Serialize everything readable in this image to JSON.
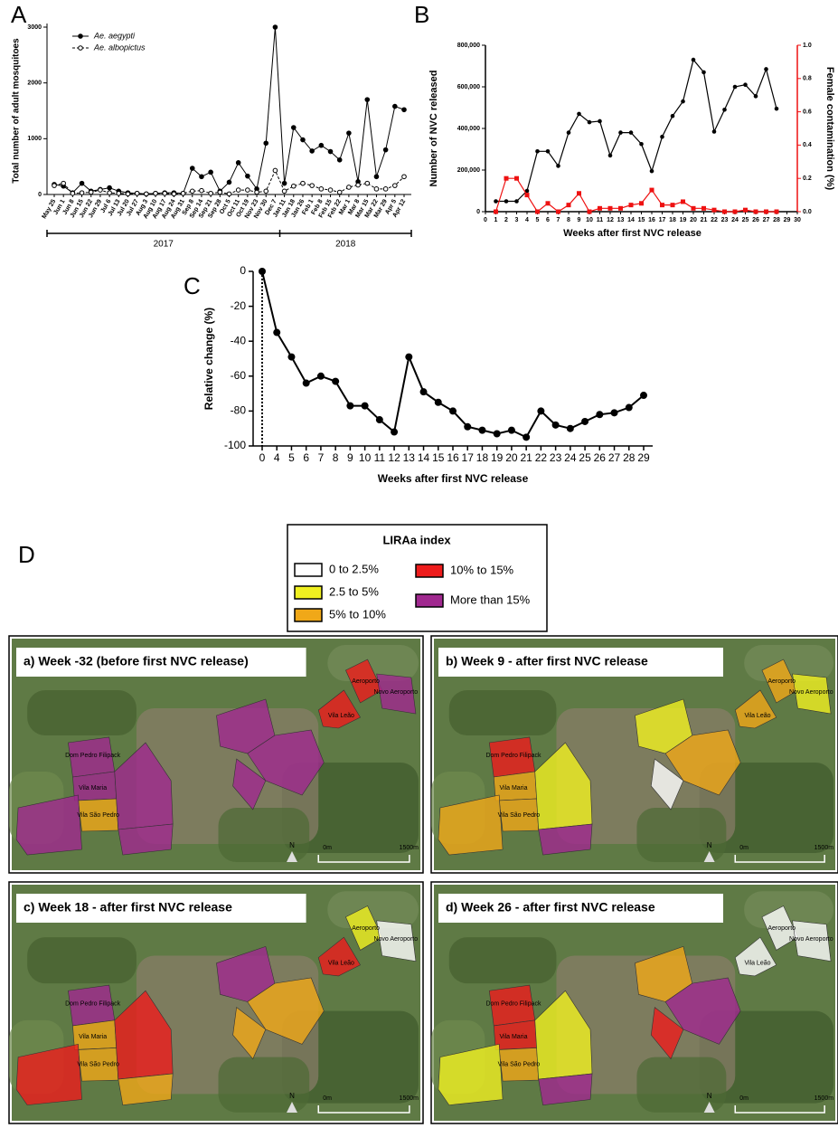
{
  "chart_data": [
    {
      "type": "line",
      "panel": "A",
      "ylabel": "Total number of adult mosquitoes",
      "categories": [
        "May 25",
        "Jun 1",
        "Jun 8",
        "Jun 15",
        "Jun 22",
        "Jun 29",
        "Jul 6",
        "Jul 13",
        "Jul 20",
        "Jul 27",
        "Aug 3",
        "Aug 10",
        "Aug 17",
        "Aug 24",
        "Aug 31",
        "Sep 8",
        "Sep 14",
        "Sep 21",
        "Sep 28",
        "Oct 5",
        "Oct 11",
        "Oct 19",
        "Nov 23",
        "Nov 30",
        "Dec 7",
        "Jan 11",
        "Jan 18",
        "Jan 26",
        "Feb 1",
        "Feb 8",
        "Feb 15",
        "Feb 22",
        "Mar 1",
        "Mar 8",
        "Mar 15",
        "Mar 22",
        "Mar 29",
        "Apr 5",
        "Apr 12"
      ],
      "series": [
        {
          "name": "Ae. aegypti",
          "color": "#000000",
          "marker": "filled",
          "linestyle": "solid",
          "values": [
            180,
            150,
            30,
            200,
            60,
            90,
            120,
            60,
            30,
            20,
            10,
            20,
            30,
            30,
            20,
            470,
            320,
            400,
            60,
            220,
            570,
            330,
            100,
            920,
            3000,
            200,
            1200,
            980,
            780,
            880,
            770,
            620,
            1100,
            230,
            1700,
            320,
            800,
            1580,
            1520
          ]
        },
        {
          "name": "Ae. albopictus",
          "color": "#000000",
          "marker": "open",
          "linestyle": "dashed",
          "values": [
            160,
            200,
            20,
            30,
            40,
            80,
            30,
            20,
            10,
            20,
            10,
            20,
            20,
            10,
            20,
            60,
            70,
            20,
            40,
            10,
            80,
            80,
            40,
            60,
            430,
            60,
            150,
            200,
            160,
            100,
            80,
            40,
            130,
            170,
            200,
            100,
            100,
            160,
            320
          ]
        }
      ],
      "ylim": [
        0,
        3000
      ],
      "yticks": [
        0,
        1000,
        2000,
        3000
      ],
      "groups": [
        "2017",
        "2018"
      ]
    },
    {
      "type": "dual-line",
      "panel": "B",
      "xlabel": "Weeks after first NVC release",
      "ylabel": "Number of NVC released",
      "y2label": "Female contamination (%)",
      "x": [
        1,
        2,
        3,
        4,
        5,
        6,
        7,
        8,
        9,
        10,
        11,
        12,
        13,
        14,
        15,
        16,
        17,
        18,
        19,
        20,
        21,
        22,
        23,
        24,
        25,
        26,
        27,
        28
      ],
      "series": [
        {
          "color": "#000000",
          "marker": "circle",
          "values": [
            50000,
            50000,
            50000,
            100000,
            290000,
            290000,
            220000,
            380000,
            470000,
            430000,
            435000,
            270000,
            380000,
            380000,
            325000,
            195000,
            360000,
            460000,
            530000,
            730000,
            670000,
            385000,
            490000,
            600000,
            610000,
            555000,
            685000,
            495000
          ]
        },
        {
          "color": "#ee1111",
          "marker": "square",
          "axis": "y2",
          "values": [
            0,
            0.2,
            0.2,
            0.1,
            0,
            0.05,
            0,
            0.04,
            0.11,
            0,
            0.02,
            0.02,
            0.02,
            0.04,
            0.05,
            0.13,
            0.04,
            0.04,
            0.06,
            0.02,
            0.02,
            0.01,
            0,
            0,
            0.01,
            0,
            0,
            0
          ]
        }
      ],
      "xlim": [
        0,
        30
      ],
      "xticks": [
        0,
        1,
        2,
        3,
        4,
        5,
        6,
        7,
        8,
        9,
        10,
        11,
        12,
        13,
        14,
        15,
        16,
        17,
        18,
        19,
        20,
        21,
        22,
        23,
        24,
        25,
        26,
        27,
        28,
        29,
        30
      ],
      "ylim": [
        0,
        800000
      ],
      "yticks": [
        0,
        {
          "value": 200000,
          "label": "200,000"
        },
        {
          "value": 400000,
          "label": "400,000"
        },
        {
          "value": 600000,
          "label": "600,000"
        },
        {
          "value": 800000,
          "label": "800,000"
        }
      ],
      "y2lim": [
        0,
        1
      ],
      "y2ticks": [
        {
          "value": 0,
          "label": "0.0"
        },
        0.2,
        0.4,
        0.6,
        0.8,
        {
          "value": 1,
          "label": "1.0"
        }
      ]
    },
    {
      "type": "line",
      "panel": "C",
      "xlabel": "Weeks after first NVC release",
      "ylabel": "Relative change (%)",
      "categories": [
        "0",
        "4",
        "5",
        "6",
        "7",
        "8",
        "9",
        "10",
        "11",
        "12",
        "13",
        "14",
        "15",
        "16",
        "17",
        "18",
        "19",
        "20",
        "21",
        "22",
        "23",
        "24",
        "25",
        "26",
        "27",
        "28",
        "29"
      ],
      "series": [
        {
          "color": "#000000",
          "marker": "big",
          "linestyle": "solid",
          "values": [
            0,
            -35,
            -49,
            -64,
            -60,
            -63,
            -77,
            -77,
            -85,
            -92,
            -49,
            -69,
            -75,
            -80,
            -89,
            -91,
            -93,
            -91,
            -95,
            -80,
            -88,
            -90,
            -86,
            -82,
            -81,
            -78,
            -71
          ]
        }
      ],
      "ylim": [
        -100,
        0
      ],
      "yticks": [
        -100,
        -80,
        -60,
        -40,
        -20,
        0
      ]
    }
  ],
  "map_figure": {
    "panel": "D",
    "legend": {
      "title": "LIRAa index",
      "items": [
        {
          "label": "0 to 2.5%",
          "color": "#ffffff"
        },
        {
          "label": "2.5 to 5%",
          "color": "#f0f020"
        },
        {
          "label": "5% to 10%",
          "color": "#f0a818"
        },
        {
          "label": "10% to 15%",
          "color": "#ee1c1c"
        },
        {
          "label": "More than 15%",
          "color": "#a0288f"
        }
      ]
    },
    "places": [
      "Aeroporto",
      "Novo Aeroporto",
      "Vila Leão",
      "Dom Pedro Filipack",
      "Vila Maria",
      "Vila São Pedro"
    ],
    "north": "N",
    "scale": [
      "0m",
      "1500m"
    ],
    "maps": [
      {
        "title": "a) Week -32 (before first NVC release)",
        "colors": [
          "#a0288f",
          "#a0288f",
          "#f0a818",
          "#a0288f",
          "#a0288f",
          "#a0288f",
          "#a0288f",
          "#a0288f",
          "#ee1c1c",
          "#ee1c1c",
          "#a0288f",
          "#a0288f"
        ]
      },
      {
        "title": "b) Week 9 - after first NVC release",
        "colors": [
          "#ee1c1c",
          "#f0a818",
          "#f0a818",
          "#f0a818",
          "#f0f020",
          "#a0288f",
          "#f0f020",
          "#f0a818",
          "#f0a818",
          "#f0a818",
          "#f0f020",
          "#ffffff"
        ]
      },
      {
        "title": "c) Week 18 - after first NVC release",
        "colors": [
          "#a0288f",
          "#f0a818",
          "#f0a818",
          "#ee1c1c",
          "#ee1c1c",
          "#f0a818",
          "#a0288f",
          "#f0a818",
          "#ee1c1c",
          "#f0f020",
          "#ffffff",
          "#f0a818"
        ]
      },
      {
        "title": "d) Week 26 - after first NVC release",
        "colors": [
          "#ee1c1c",
          "#ee1c1c",
          "#f0a818",
          "#f0f020",
          "#f0f020",
          "#a0288f",
          "#f0a818",
          "#a0288f",
          "#ffffff",
          "#ffffff",
          "#ffffff",
          "#ee1c1c"
        ]
      }
    ]
  }
}
